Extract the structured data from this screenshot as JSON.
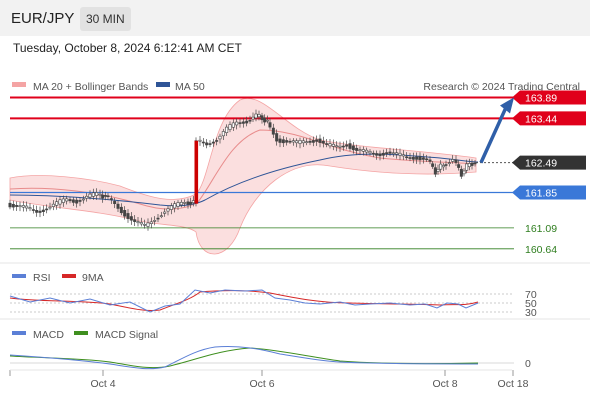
{
  "header": {
    "symbol": "EUR/JPY",
    "timeframe": "30 MIN",
    "datetime": "Tuesday, October 8, 2024 6:12:41 AM CET"
  },
  "legend": {
    "bb": {
      "label": "MA 20 + Bollinger Bands",
      "color": "#f4a4a4"
    },
    "ma50": {
      "label": "MA 50",
      "color": "#2f5597"
    },
    "credit": "Research © 2024 Trading Central"
  },
  "rsi_legend": {
    "rsi": "RSI",
    "ma": "9MA",
    "rsi_color": "#5b7fd6",
    "ma_color": "#d62828"
  },
  "macd_legend": {
    "macd": "MACD",
    "signal": "MACD Signal",
    "macd_color": "#5b7fd6",
    "signal_color": "#3f8f1f"
  },
  "chart_data": {
    "type": "candlestick",
    "ylim": [
      160.4,
      164.05
    ],
    "price_levels": [
      {
        "value": 163.89,
        "label": "163.89",
        "kind": "resistance",
        "color": "#e0001b"
      },
      {
        "value": 163.44,
        "label": "163.44",
        "kind": "resistance",
        "color": "#e0001b"
      },
      {
        "value": 162.49,
        "label": "162.49",
        "kind": "current",
        "color": "#333333"
      },
      {
        "value": 161.85,
        "label": "161.85",
        "kind": "pivot",
        "color": "#3a78d8"
      },
      {
        "value": 161.09,
        "label": "161.09",
        "kind": "support",
        "color": "#2e7d1e"
      },
      {
        "value": 160.64,
        "label": "160.64",
        "kind": "support",
        "color": "#2e7d1e"
      }
    ],
    "x_ticks": [
      "Oct 4",
      "Oct 6",
      "Oct 8",
      "Oct 18"
    ],
    "forecast_arrow": {
      "from": 162.49,
      "to": 163.89
    },
    "rsi": {
      "levels": [
        70,
        50,
        30
      ]
    },
    "macd": {
      "levels": [
        0
      ]
    }
  }
}
